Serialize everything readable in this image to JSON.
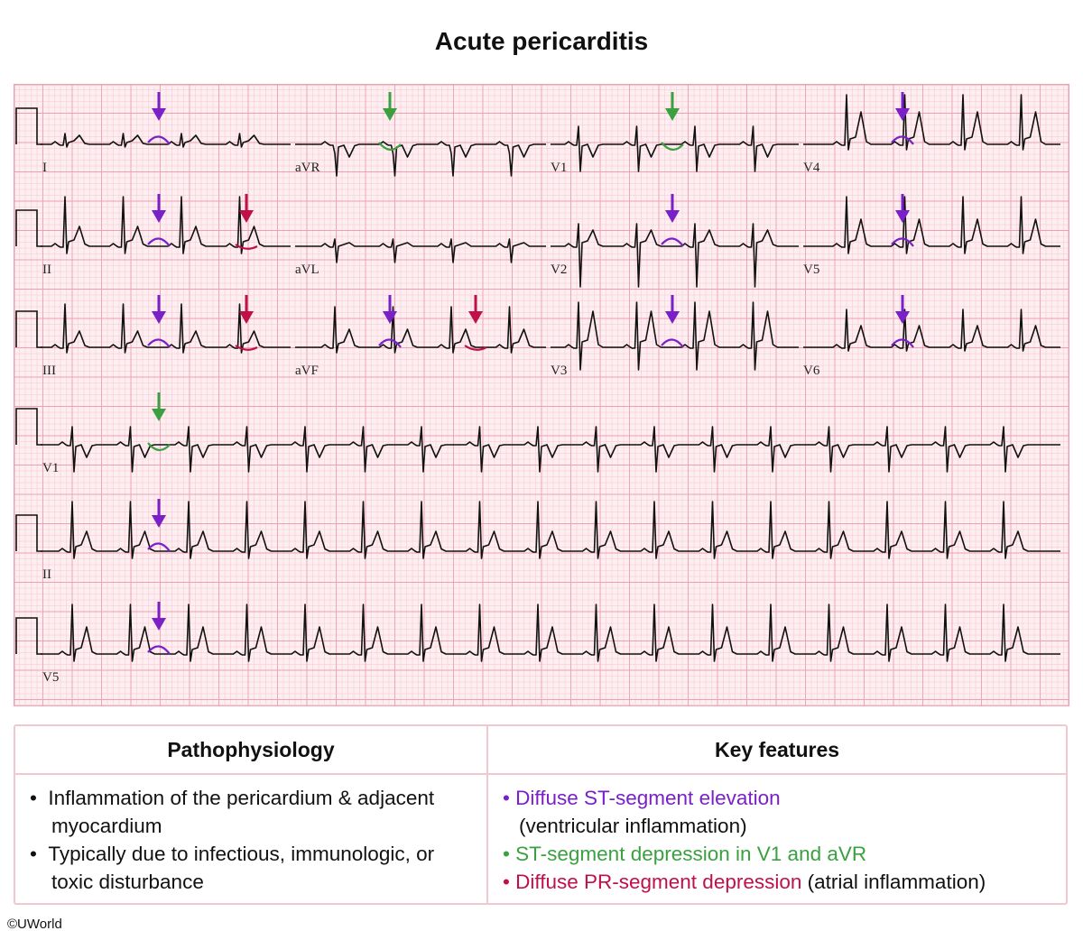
{
  "title": "Acute pericarditis",
  "ecg": {
    "lead_labels": [
      "I",
      "aVR",
      "V1",
      "V4",
      "II",
      "aVL",
      "V2",
      "V5",
      "III",
      "aVF",
      "V3",
      "V6",
      "V1",
      "II",
      "V5"
    ],
    "colors": {
      "grid_bg": "#fdeef1",
      "grid_minor": "#f6c6d0",
      "grid_major": "#ee9fb1",
      "trace": "#111111",
      "st_elevation": "#7a20c8",
      "st_depression": "#3aa040",
      "pr_depression": "#c0104a"
    }
  },
  "table": {
    "pathophysiology": {
      "header": "Pathophysiology",
      "items": [
        "Inflammation of the pericardium & adjacent myocardium",
        "Typically due to infectious, immunologic, or toxic disturbance"
      ]
    },
    "key_features": {
      "header": "Key features",
      "f1": "Diffuse ST-segment elevation",
      "f1_note": "(ventricular inflammation)",
      "f2": "ST-segment depression in V1 and aVR",
      "f3": "Diffuse PR-segment depression",
      "f3_note": "(atrial inflammation)"
    }
  },
  "copyright": "©UWorld"
}
